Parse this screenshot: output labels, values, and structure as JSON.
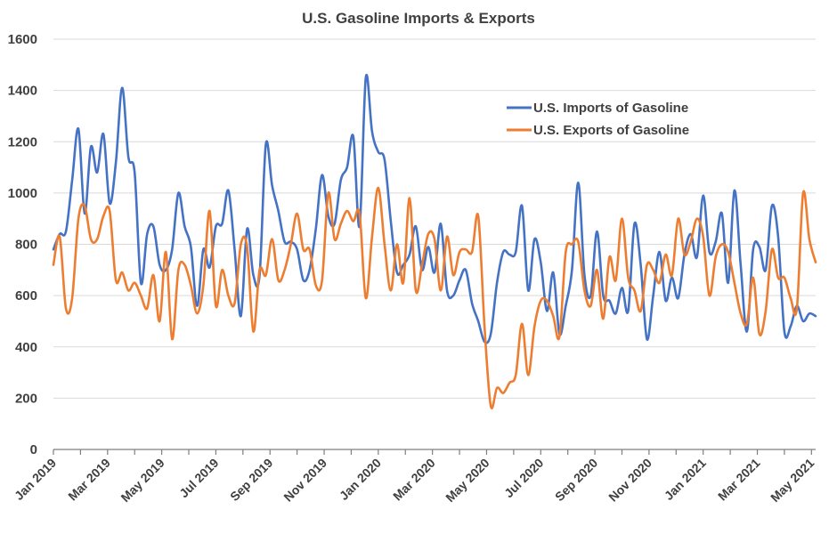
{
  "chart_data": {
    "type": "line",
    "title": "U.S. Gasoline Imports & Exports",
    "xlabel": "",
    "ylabel": "",
    "ylim": [
      0,
      1600
    ],
    "yticks": [
      0,
      200,
      400,
      600,
      800,
      1000,
      1200,
      1400,
      1600
    ],
    "x_tick_labels": [
      "Jan 2019",
      "Mar 2019",
      "May 2019",
      "Jul 2019",
      "Sep 2019",
      "Nov 2019",
      "Jan 2020",
      "Mar 2020",
      "May 2020",
      "Jul 2020",
      "Sep 2020",
      "Nov 2020",
      "Jan 2021",
      "Mar 2021",
      "May 2021"
    ],
    "x_unit": "weeks",
    "x_start": "Jan 2019",
    "grid": true,
    "legend_position": "top-right",
    "series": [
      {
        "name": "U.S. Imports of Gasoline",
        "color": "#4472C4",
        "values": [
          780,
          840,
          850,
          1050,
          1250,
          920,
          1180,
          1080,
          1230,
          960,
          1120,
          1410,
          1140,
          1080,
          650,
          840,
          870,
          720,
          700,
          780,
          1000,
          870,
          790,
          560,
          780,
          710,
          870,
          880,
          1010,
          780,
          520,
          860,
          680,
          680,
          1190,
          1030,
          930,
          810,
          810,
          780,
          660,
          700,
          860,
          1070,
          910,
          880,
          1050,
          1100,
          1220,
          870,
          1450,
          1240,
          1160,
          1130,
          890,
          690,
          720,
          760,
          870,
          700,
          790,
          690,
          880,
          620,
          600,
          660,
          700,
          570,
          500,
          420,
          450,
          650,
          770,
          760,
          770,
          950,
          620,
          820,
          730,
          540,
          690,
          450,
          560,
          700,
          1040,
          680,
          600,
          850,
          600,
          580,
          530,
          630,
          540,
          880,
          720,
          430,
          600,
          770,
          580,
          670,
          590,
          760,
          840,
          750,
          990,
          770,
          810,
          920,
          650,
          1010,
          720,
          460,
          780,
          790,
          700,
          950,
          830,
          460,
          480,
          560,
          500,
          530,
          520
        ],
        "show_all": true
      },
      {
        "name": "U.S. Exports of Gasoline",
        "color": "#ED7D31",
        "values": [
          720,
          830,
          550,
          590,
          900,
          950,
          820,
          820,
          910,
          930,
          660,
          690,
          620,
          650,
          600,
          550,
          680,
          500,
          770,
          430,
          700,
          720,
          640,
          530,
          640,
          930,
          560,
          700,
          600,
          570,
          800,
          790,
          460,
          700,
          680,
          820,
          660,
          700,
          800,
          920,
          780,
          780,
          640,
          660,
          1000,
          820,
          880,
          930,
          890,
          920,
          590,
          830,
          1020,
          800,
          620,
          800,
          650,
          980,
          620,
          720,
          840,
          820,
          620,
          830,
          680,
          770,
          780,
          770,
          910,
          480,
          170,
          240,
          220,
          260,
          290,
          490,
          290,
          480,
          580,
          580,
          520,
          440,
          770,
          800,
          810,
          620,
          560,
          700,
          510,
          750,
          660,
          900,
          670,
          620,
          540,
          720,
          700,
          650,
          760,
          680,
          900,
          760,
          810,
          900,
          830,
          600,
          750,
          800,
          770,
          650,
          530,
          490,
          670,
          450,
          540,
          780,
          670,
          670,
          590,
          550,
          1000,
          820,
          730
        ],
        "show_all": true
      }
    ]
  }
}
